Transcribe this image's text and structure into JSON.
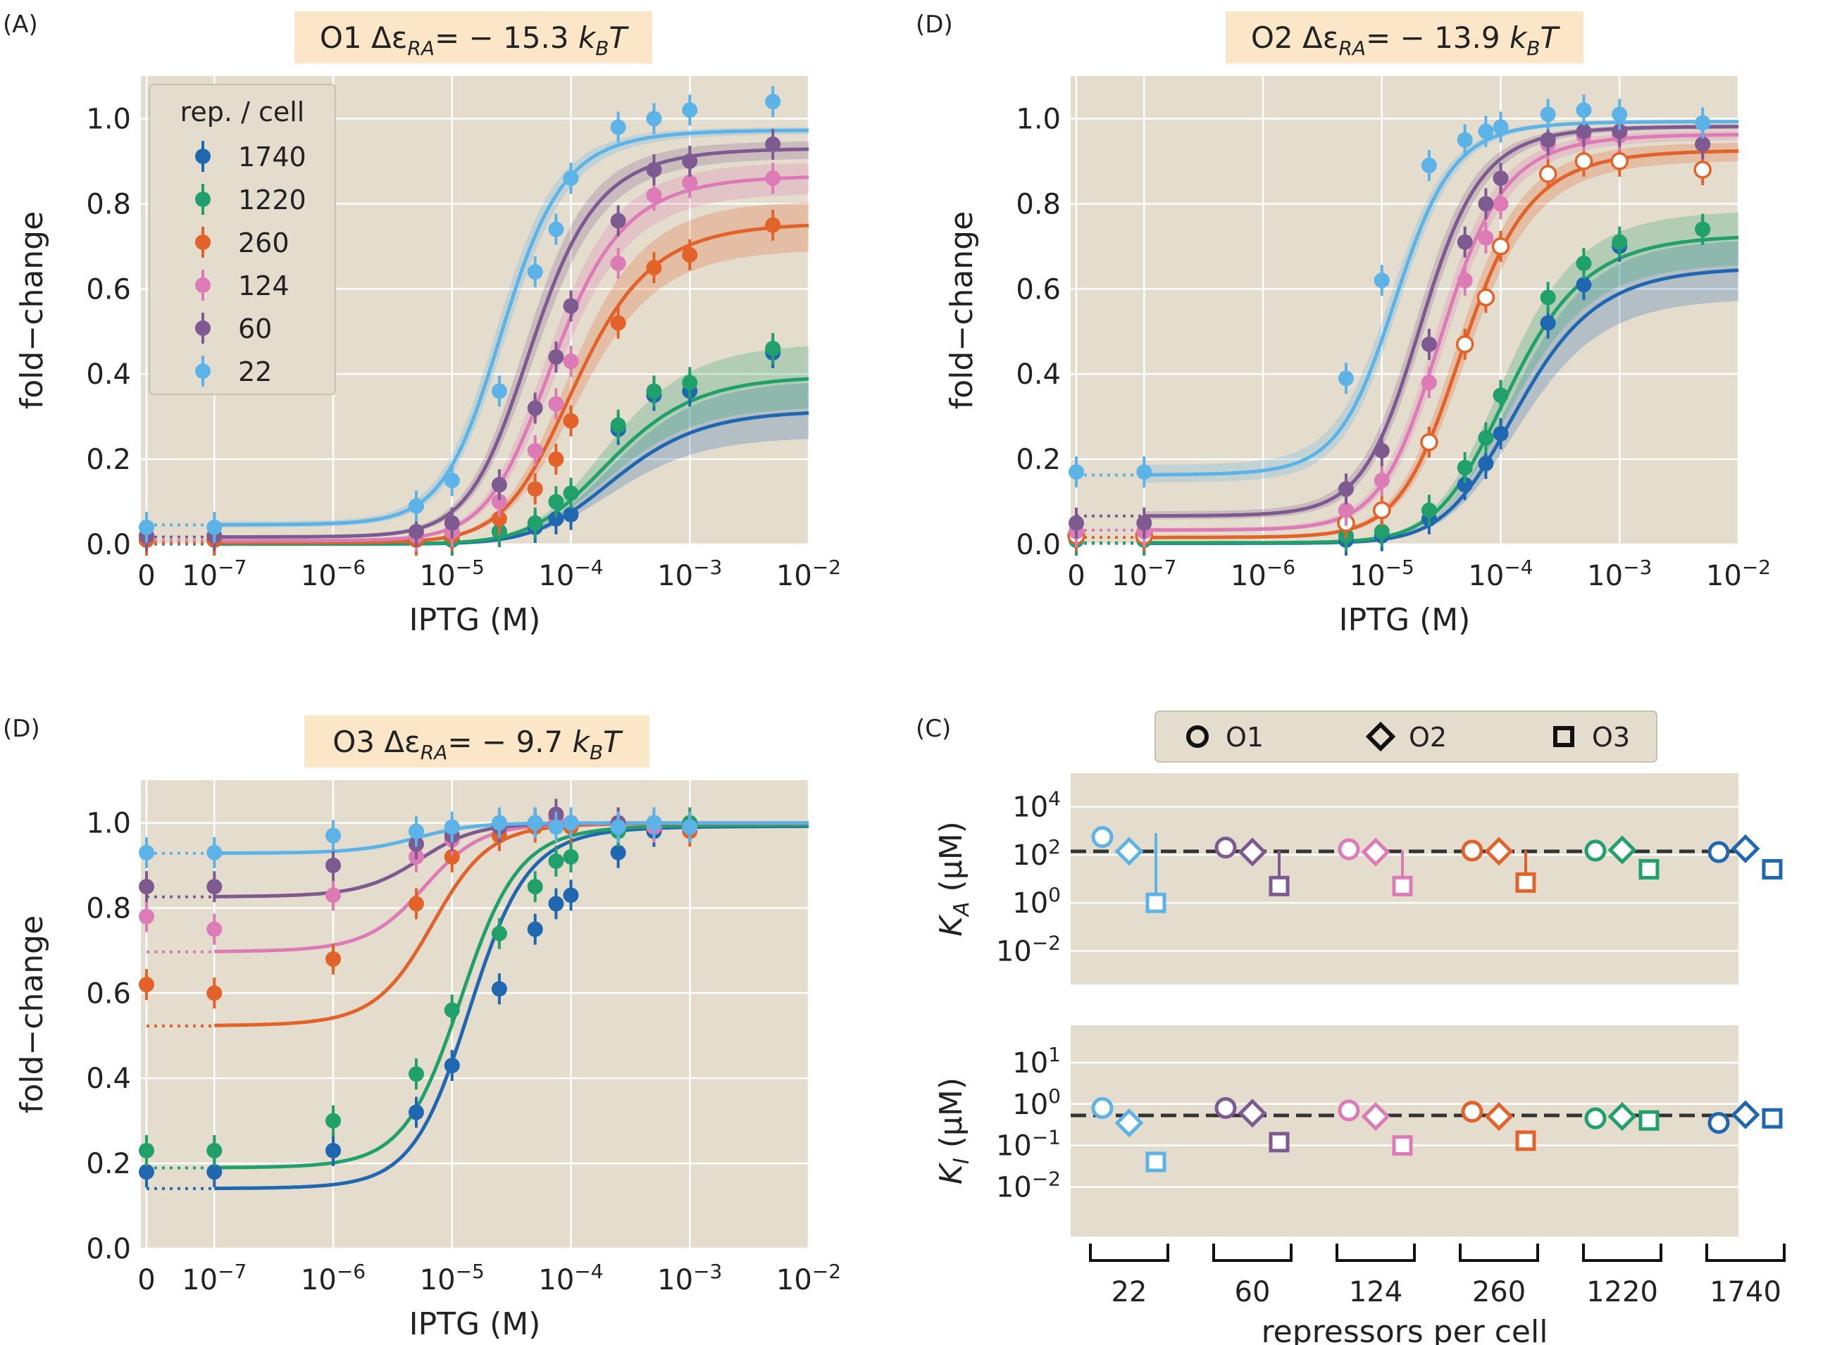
{
  "colors": {
    "1740": "#1f68b1",
    "1220": "#20a06b",
    "260": "#e2622a",
    "124": "#dc7bb6",
    "60": "#7d5a90",
    "22": "#5bb3e8",
    "bg": "#e4dccd",
    "title_bg": "#fbe6c8"
  },
  "panels": {
    "A": {
      "tag": "(A)",
      "title_op": "O1",
      "title_energy": "Δε",
      "title_sub": "RA",
      "title_value": "= − 15.3 ",
      "title_units": "k",
      "title_units_sub": "B",
      "title_units_T": "T"
    },
    "B": {
      "tag": "(D)",
      "title_op": "O2",
      "title_energy": "Δε",
      "title_sub": "RA",
      "title_value": "= − 13.9 ",
      "title_units": "k",
      "title_units_sub": "B",
      "title_units_T": "T"
    },
    "D": {
      "tag": "(D)",
      "title_op": "O3",
      "title_energy": "Δε",
      "title_sub": "RA",
      "title_value": "= − 9.7 ",
      "title_units": "k",
      "title_units_sub": "B",
      "title_units_T": "T"
    },
    "C": {
      "tag": "(C)"
    }
  },
  "legend": {
    "title": "rep. / cell",
    "entries": [
      "1740",
      "1220",
      "260",
      "124",
      "60",
      "22"
    ]
  },
  "operator_legend": [
    "O1",
    "O2",
    "O3"
  ],
  "chart_data": [
    {
      "type": "scatter",
      "panel": "A",
      "operator": "O1",
      "xlabel": "IPTG (M)",
      "ylabel": "fold−change",
      "xscale": "symlog",
      "xticks": [
        "0",
        "10",
        "10",
        "10",
        "10",
        "10",
        "10"
      ],
      "xtick_exps": [
        "",
        "−7",
        "−6",
        "−5",
        "−4",
        "−3",
        "−2"
      ],
      "yticks": [
        "0.0",
        "0.2",
        "0.4",
        "0.6",
        "0.8",
        "1.0"
      ],
      "ylim": [
        0,
        1.1
      ],
      "ka_uM": 139,
      "ki_uM": 0.53,
      "energy_kBT": -15.3,
      "fit_series": [
        "22",
        "60",
        "124",
        "260"
      ],
      "pred_series": [
        "1220",
        "1740"
      ],
      "x": [
        0,
        1e-07,
        5e-06,
        1e-05,
        2.5e-05,
        5e-05,
        7.5e-05,
        0.0001,
        0.00025,
        0.0005,
        0.001,
        0.005
      ],
      "series": [
        {
          "name": "1740",
          "values": [
            0.01,
            0.01,
            0.01,
            0.01,
            0.03,
            0.04,
            0.06,
            0.07,
            0.27,
            0.35,
            0.36,
            0.45
          ]
        },
        {
          "name": "1220",
          "values": [
            0.01,
            0.01,
            0.01,
            0.01,
            0.03,
            0.05,
            0.1,
            0.12,
            0.28,
            0.36,
            0.38,
            0.46
          ]
        },
        {
          "name": "260",
          "values": [
            0.01,
            0.01,
            0.01,
            0.02,
            0.06,
            0.13,
            0.2,
            0.29,
            0.52,
            0.65,
            0.68,
            0.75
          ]
        },
        {
          "name": "124",
          "values": [
            0.02,
            0.02,
            0.02,
            0.03,
            0.1,
            0.22,
            0.33,
            0.43,
            0.66,
            0.82,
            0.85,
            0.86
          ]
        },
        {
          "name": "60",
          "values": [
            0.02,
            0.02,
            0.03,
            0.05,
            0.14,
            0.32,
            0.44,
            0.56,
            0.76,
            0.88,
            0.9,
            0.94
          ]
        },
        {
          "name": "22",
          "values": [
            0.04,
            0.04,
            0.09,
            0.15,
            0.36,
            0.64,
            0.74,
            0.86,
            0.98,
            1.0,
            1.02,
            1.04
          ]
        }
      ]
    },
    {
      "type": "scatter",
      "panel": "B",
      "operator": "O2",
      "xlabel": "IPTG (M)",
      "ylabel": "fold−change",
      "xscale": "symlog",
      "xticks": [
        "0",
        "10",
        "10",
        "10",
        "10",
        "10",
        "10"
      ],
      "xtick_exps": [
        "",
        "−7",
        "−6",
        "−5",
        "−4",
        "−3",
        "−2"
      ],
      "yticks": [
        "0.0",
        "0.2",
        "0.4",
        "0.6",
        "0.8",
        "1.0"
      ],
      "ylim": [
        0,
        1.1
      ],
      "ka_uM": 139,
      "ki_uM": 0.53,
      "energy_kBT": -13.9,
      "fit_series": [
        "260"
      ],
      "open_series": [
        "260"
      ],
      "x": [
        0,
        1e-07,
        5e-06,
        1e-05,
        2.5e-05,
        5e-05,
        7.5e-05,
        0.0001,
        0.00025,
        0.0005,
        0.001,
        0.005
      ],
      "series": [
        {
          "name": "1740",
          "values": [
            0.01,
            0.01,
            0.01,
            0.02,
            0.06,
            0.14,
            0.19,
            0.26,
            0.52,
            0.61,
            0.7,
            0.74
          ]
        },
        {
          "name": "1220",
          "values": [
            0.01,
            0.01,
            0.02,
            0.03,
            0.08,
            0.18,
            0.25,
            0.35,
            0.58,
            0.66,
            0.71,
            0.74
          ]
        },
        {
          "name": "260",
          "values": [
            0.02,
            0.02,
            0.05,
            0.08,
            0.24,
            0.47,
            0.58,
            0.7,
            0.87,
            0.9,
            0.9,
            0.88
          ]
        },
        {
          "name": "124",
          "values": [
            0.03,
            0.03,
            0.08,
            0.15,
            0.38,
            0.62,
            0.72,
            0.8,
            0.94,
            0.96,
            0.96,
            0.94
          ]
        },
        {
          "name": "60",
          "values": [
            0.05,
            0.05,
            0.13,
            0.22,
            0.47,
            0.71,
            0.8,
            0.86,
            0.95,
            0.97,
            0.97,
            0.94
          ]
        },
        {
          "name": "22",
          "values": [
            0.17,
            0.17,
            0.39,
            0.62,
            0.89,
            0.95,
            0.97,
            0.98,
            1.01,
            1.02,
            1.01,
            0.99
          ]
        }
      ]
    },
    {
      "type": "scatter",
      "panel": "D",
      "operator": "O3",
      "xlabel": "IPTG (M)",
      "ylabel": "fold−change",
      "xscale": "symlog",
      "xticks": [
        "0",
        "10",
        "10",
        "10",
        "10",
        "10",
        "10"
      ],
      "xtick_exps": [
        "",
        "−7",
        "−6",
        "−5",
        "−4",
        "−3",
        "−2"
      ],
      "yticks": [
        "0.0",
        "0.2",
        "0.4",
        "0.6",
        "0.8",
        "1.0"
      ],
      "ylim": [
        0,
        1.1
      ],
      "ka_uM": 139,
      "ki_uM": 0.53,
      "energy_kBT": -9.7,
      "x": [
        0,
        1e-07,
        1e-06,
        5e-06,
        1e-05,
        2.5e-05,
        5e-05,
        7.5e-05,
        0.0001,
        0.00025,
        0.0005,
        0.001
      ],
      "series": [
        {
          "name": "1740",
          "values": [
            0.18,
            0.18,
            0.23,
            0.32,
            0.43,
            0.61,
            0.75,
            0.81,
            0.83,
            0.93,
            0.98,
            0.99
          ]
        },
        {
          "name": "1220",
          "values": [
            0.23,
            0.23,
            0.3,
            0.41,
            0.56,
            0.74,
            0.85,
            0.91,
            0.92,
            0.98,
            0.99,
            1.0
          ]
        },
        {
          "name": "260",
          "values": [
            0.62,
            0.6,
            0.68,
            0.81,
            0.92,
            0.97,
            0.99,
            1.0,
            0.99,
            1.0,
            0.99,
            0.98
          ]
        },
        {
          "name": "124",
          "values": [
            0.78,
            0.75,
            0.83,
            0.92,
            0.96,
            0.99,
            1.0,
            1.01,
            1.0,
            1.0,
            0.99,
            0.99
          ]
        },
        {
          "name": "60",
          "values": [
            0.85,
            0.85,
            0.9,
            0.95,
            0.97,
            0.99,
            1.0,
            1.02,
            1.0,
            1.0,
            1.0,
            0.99
          ]
        },
        {
          "name": "22",
          "values": [
            0.93,
            0.93,
            0.97,
            0.98,
            0.99,
            1.0,
            1.0,
            0.99,
            1.0,
            0.99,
            1.0,
            0.99
          ]
        }
      ]
    },
    {
      "type": "scatter",
      "panel": "C-top",
      "ylabel": "K",
      "ylabel_sub": "A",
      "ylabel_units": " (μM)",
      "yscale": "log",
      "ylim_log10": [
        -3.4,
        5.4
      ],
      "yticks": [
        "10",
        "10",
        "10",
        "10"
      ],
      "ytick_exps": [
        "4",
        "2",
        "0",
        "−2"
      ],
      "reference_value": 139,
      "categories": [
        "22",
        "60",
        "124",
        "260",
        "1220",
        "1740"
      ],
      "series": [
        {
          "name": "O1",
          "values": [
            550,
            200,
            170,
            150,
            150,
            130
          ]
        },
        {
          "name": "O2",
          "values": [
            140,
            130,
            130,
            140,
            160,
            180
          ]
        },
        {
          "name": "O3",
          "values": [
            1.0,
            5,
            5,
            7,
            25,
            25
          ]
        }
      ],
      "error_low": {
        "O2": [
          null,
          null,
          null,
          null,
          null,
          null
        ],
        "O3": [
          0.6,
          3,
          3,
          4,
          15,
          15
        ]
      },
      "error_high": {
        "O2": [
          500,
          null,
          null,
          null,
          null,
          null
        ],
        "O3": [
          800,
          150,
          150,
          150,
          60,
          60
        ]
      }
    },
    {
      "type": "scatter",
      "panel": "C-bottom",
      "ylabel": "K",
      "ylabel_sub": "I",
      "ylabel_units": " (μM)",
      "yscale": "log",
      "ylim_log10": [
        -3.2,
        1.9
      ],
      "yticks": [
        "10",
        "10",
        "10",
        "10"
      ],
      "ytick_exps": [
        "1",
        "0",
        "−1",
        "−2"
      ],
      "reference_value": 0.53,
      "categories": [
        "22",
        "60",
        "124",
        "260",
        "1220",
        "1740"
      ],
      "xlabel": "repressors per cell",
      "series": [
        {
          "name": "O1",
          "values": [
            0.8,
            0.8,
            0.7,
            0.65,
            0.45,
            0.35
          ]
        },
        {
          "name": "O2",
          "values": [
            0.35,
            0.6,
            0.5,
            0.5,
            0.5,
            0.55
          ]
        },
        {
          "name": "O3",
          "values": [
            0.04,
            0.12,
            0.1,
            0.13,
            0.4,
            0.45
          ]
        }
      ]
    }
  ]
}
